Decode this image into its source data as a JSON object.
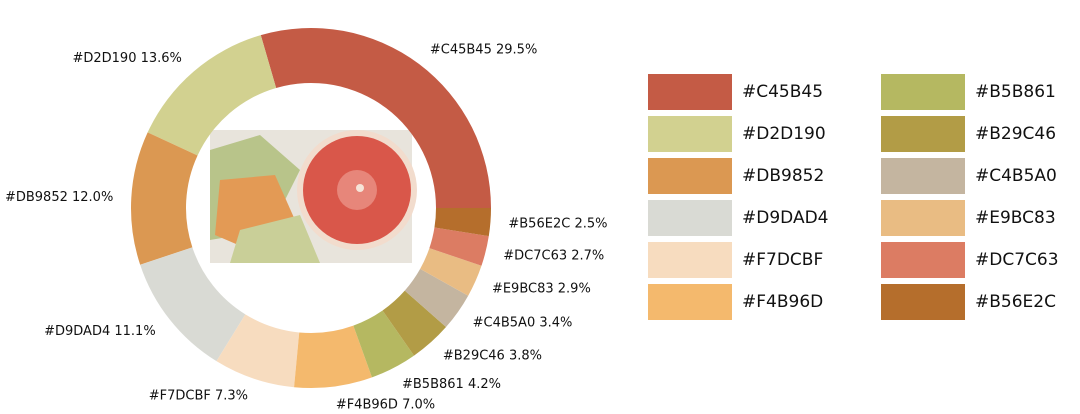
{
  "chart_data": {
    "type": "donut",
    "categories": [
      "#C45B45",
      "#D2D190",
      "#DB9852",
      "#D9DAD4",
      "#F7DCBF",
      "#F4B96D",
      "#B5B861",
      "#B29C46",
      "#C4B5A0",
      "#E9BC83",
      "#DC7C63",
      "#B56E2C"
    ],
    "values": [
      29.5,
      13.6,
      12.0,
      11.1,
      7.3,
      7.0,
      4.2,
      3.8,
      3.4,
      2.9,
      2.7,
      2.5
    ],
    "value_labels": [
      "29.5%",
      "13.6%",
      "12.0%",
      "11.1%",
      "7.3%",
      "7.0%",
      "4.2%",
      "3.8%",
      "3.4%",
      "2.9%",
      "2.7%",
      "2.5%"
    ],
    "colors": [
      "#C45B45",
      "#D2D190",
      "#DB9852",
      "#D9DAD4",
      "#F7DCBF",
      "#F4B96D",
      "#B5B861",
      "#B29C46",
      "#C4B5A0",
      "#E9BC83",
      "#DC7C63",
      "#B56E2C"
    ],
    "legend": "right"
  }
}
